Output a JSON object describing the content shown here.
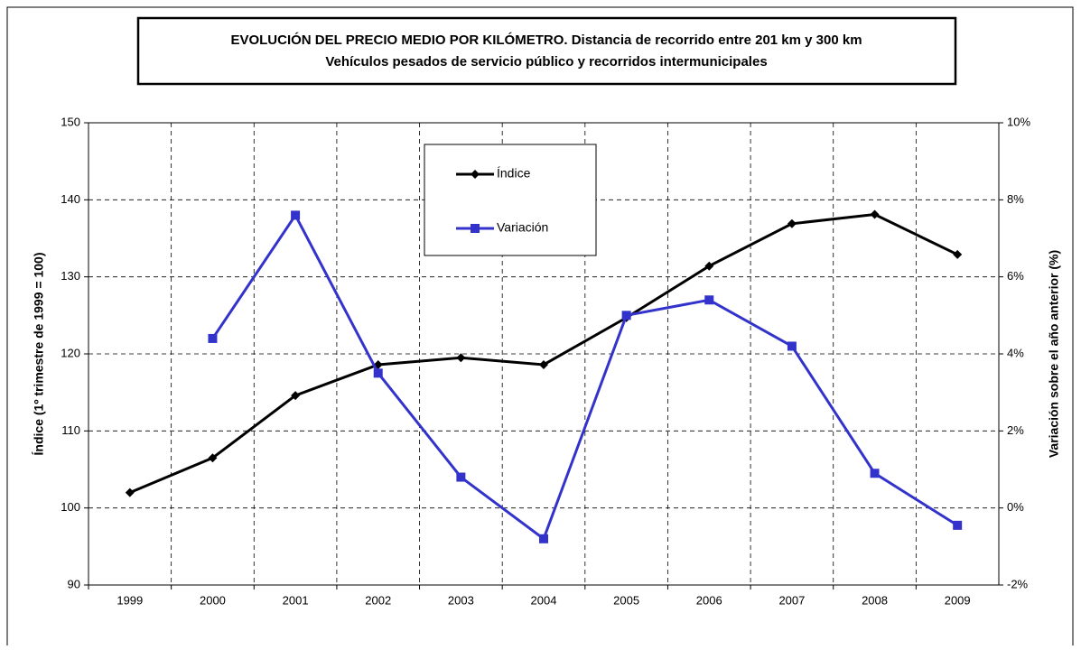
{
  "chart_data": {
    "type": "line",
    "title": "EVOLUCIÓN DEL PRECIO MEDIO POR KILÓMETRO. Distancia de recorrido entre 201 km y 300 km",
    "subtitle": "Vehículos pesados de servicio público y recorridos intermunicipales",
    "ylabel": "Índice (1º trimestre de 1999 = 100)",
    "y2label": "Variación sobre el año anterior (%)",
    "categories": [
      "1999",
      "2000",
      "2001",
      "2002",
      "2003",
      "2004",
      "2005",
      "2006",
      "2007",
      "2008",
      "2009"
    ],
    "series": [
      {
        "name": "Índice",
        "color": "#000000",
        "marker": "diamond",
        "values": [
          102,
          106.5,
          114.6,
          118.6,
          119.5,
          118.6,
          124.7,
          131.4,
          136.9,
          138.1,
          132.9
        ]
      },
      {
        "name": "Variación",
        "color": "#3333cc",
        "marker": "square",
        "axis": "y2",
        "values": [
          null,
          4.4,
          7.6,
          3.5,
          0.8,
          -0.8,
          5.0,
          5.4,
          4.2,
          0.9,
          -0.45
        ]
      }
    ],
    "ylim": [
      90,
      150
    ],
    "yticks": [
      90,
      100,
      110,
      120,
      130,
      140,
      150
    ],
    "y2lim": [
      -2,
      10
    ],
    "y2ticks": [
      {
        "value": -2,
        "label": "-2%"
      },
      {
        "value": 0,
        "label": "0%"
      },
      {
        "value": 2,
        "label": "2%"
      },
      {
        "value": 4,
        "label": "4%"
      },
      {
        "value": 6,
        "label": "6%"
      },
      {
        "value": 8,
        "label": "8%"
      },
      {
        "value": 10,
        "label": "10%"
      }
    ],
    "grid": true
  }
}
